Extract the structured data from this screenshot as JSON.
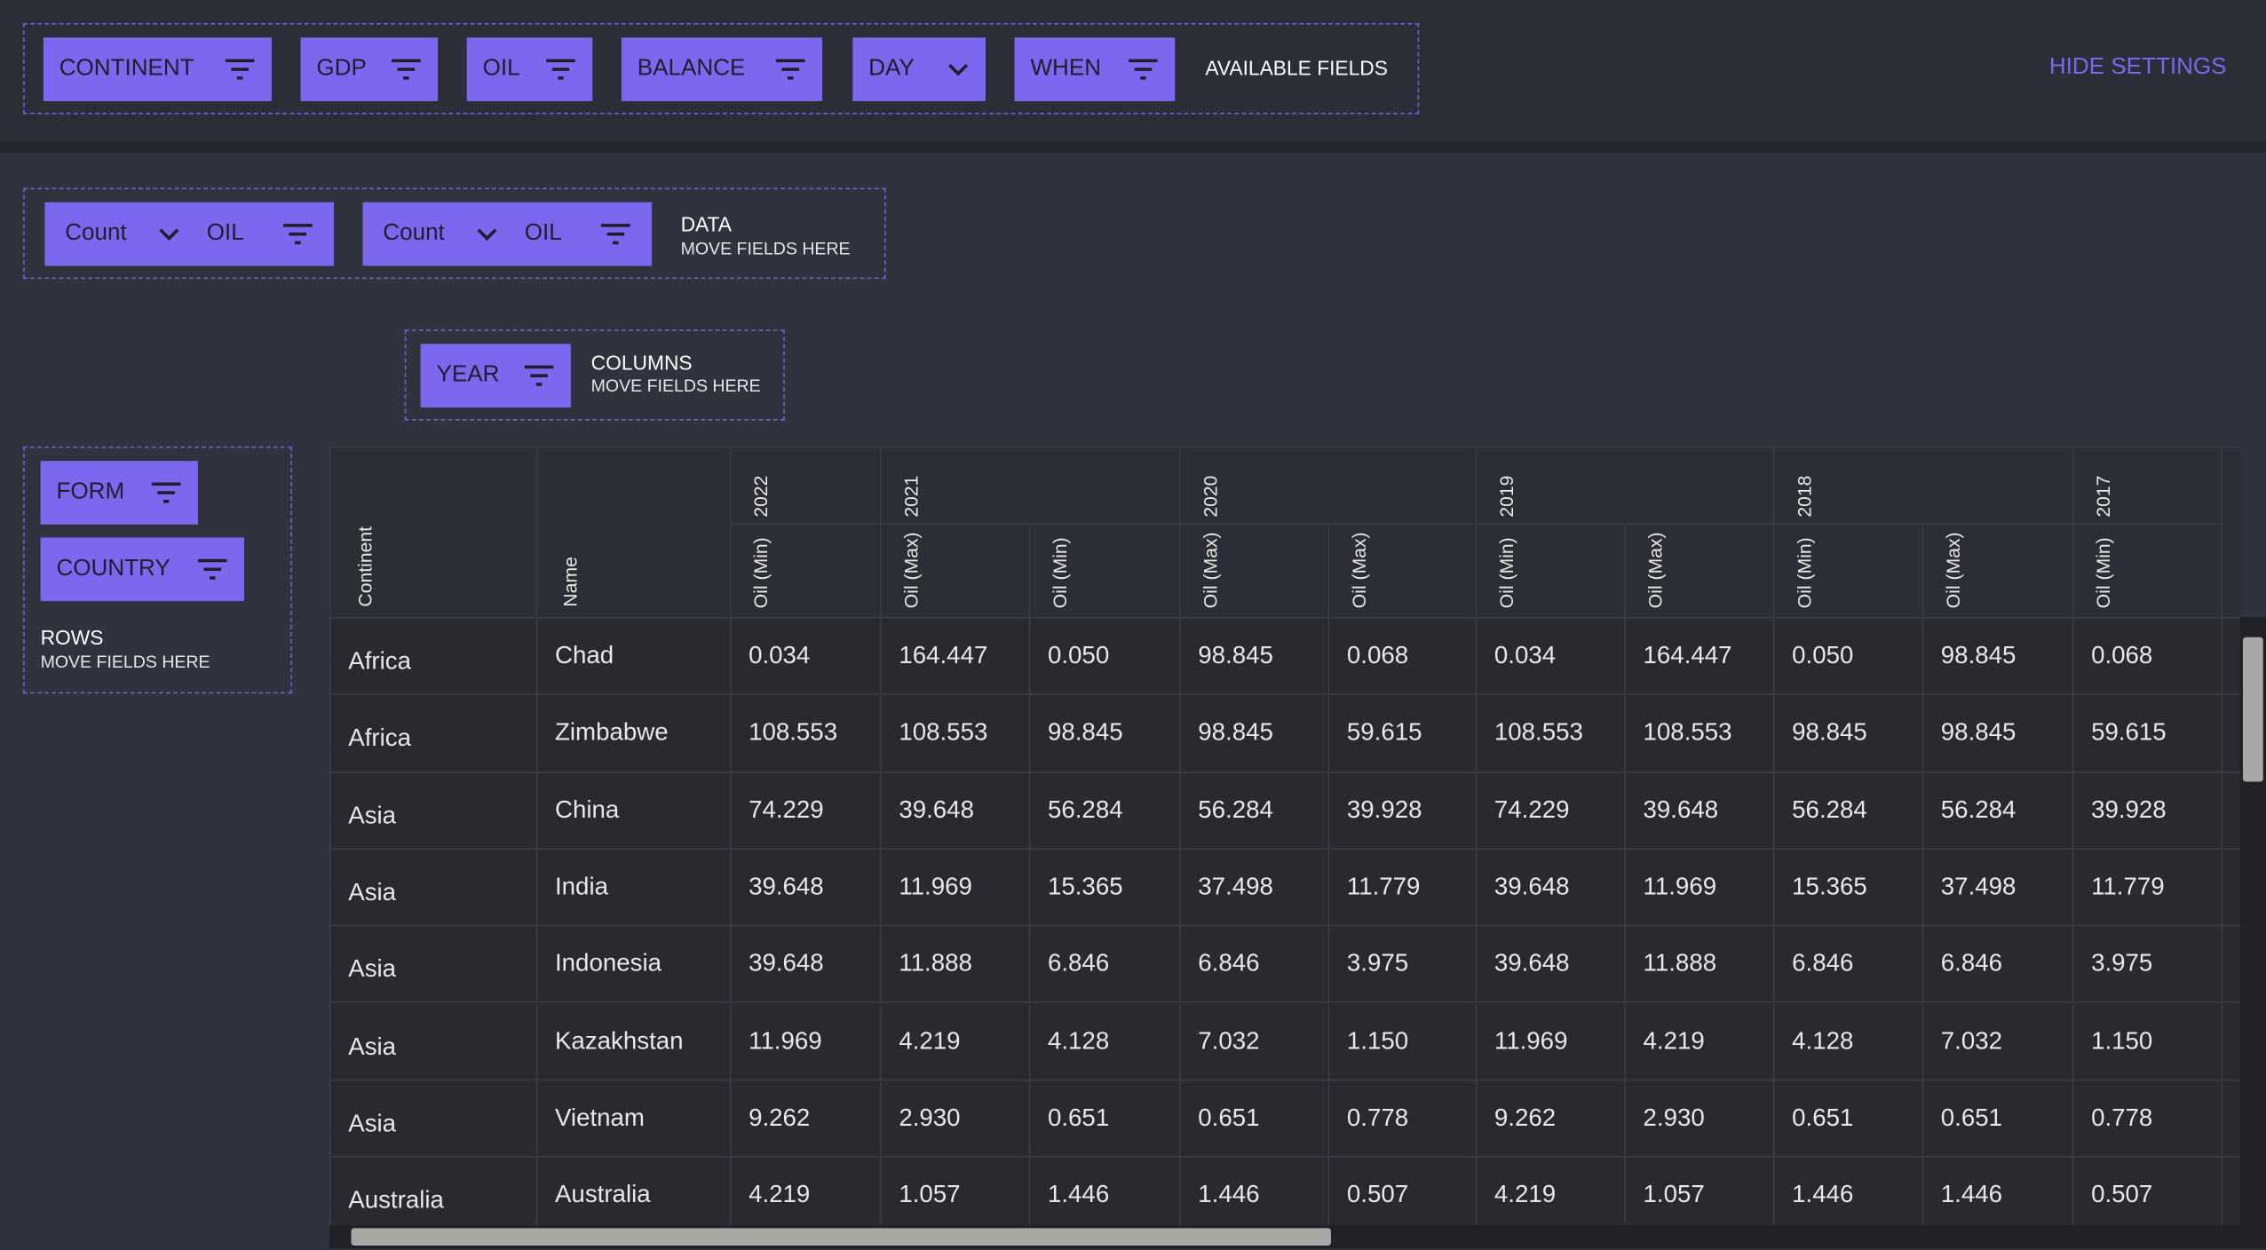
{
  "available": {
    "fields": [
      "CONTINENT",
      "GDP",
      "OIL",
      "BALANCE",
      "DAY",
      "WHEN"
    ],
    "label": "AVAILABLE FIELDS",
    "hide": "HIDE SETTINGS"
  },
  "data_zone": {
    "items": [
      {
        "agg": "Count",
        "field": "OIL"
      },
      {
        "agg": "Count",
        "field": "OIL"
      }
    ],
    "label": "DATA",
    "hint": "MOVE FIELDS HERE"
  },
  "columns_zone": {
    "items": [
      "YEAR"
    ],
    "label": "COLUMNS",
    "hint": "MOVE FIELDS HERE"
  },
  "rows_zone": {
    "items": [
      "FORM",
      "COUNTRY"
    ],
    "label": "ROWS",
    "hint": "MOVE FIELDS HERE"
  },
  "table": {
    "row_headers": [
      "Continent",
      "Name"
    ],
    "year_headers": [
      "2022",
      "2021",
      null,
      "2020",
      null,
      "2019",
      null,
      "2018",
      null,
      "2017"
    ],
    "measure_headers": [
      "Oil (Min)",
      "Oil (Max)",
      "Oil (Min)",
      "Oil (Max)",
      "Oil (Max)",
      "Oil (Min)",
      "Oil (Max)",
      "Oil (Min)",
      "Oil (Max)",
      "Oil (Min)"
    ],
    "rows": [
      [
        "Africa",
        "Chad",
        "0.034",
        "164.447",
        "0.050",
        "98.845",
        "0.068",
        "0.034",
        "164.447",
        "0.050",
        "98.845",
        "0.068"
      ],
      [
        "Africa",
        "Zimbabwe",
        "108.553",
        "108.553",
        "98.845",
        "98.845",
        "59.615",
        "108.553",
        "108.553",
        "98.845",
        "98.845",
        "59.615"
      ],
      [
        "Asia",
        "China",
        "74.229",
        "39.648",
        "56.284",
        "56.284",
        "39.928",
        "74.229",
        "39.648",
        "56.284",
        "56.284",
        "39.928"
      ],
      [
        "Asia",
        "India",
        "39.648",
        "11.969",
        "15.365",
        "37.498",
        "11.779",
        "39.648",
        "11.969",
        "15.365",
        "37.498",
        "11.779"
      ],
      [
        "Asia",
        "Indonesia",
        "39.648",
        "11.888",
        "6.846",
        "6.846",
        "3.975",
        "39.648",
        "11.888",
        "6.846",
        "6.846",
        "3.975"
      ],
      [
        "Asia",
        "Kazakhstan",
        "11.969",
        "4.219",
        "4.128",
        "7.032",
        "1.150",
        "11.969",
        "4.219",
        "4.128",
        "7.032",
        "1.150"
      ],
      [
        "Asia",
        "Vietnam",
        "9.262",
        "2.930",
        "0.651",
        "0.651",
        "0.778",
        "9.262",
        "2.930",
        "0.651",
        "0.651",
        "0.778"
      ],
      [
        "Australia",
        "Australia",
        "4.219",
        "1.057",
        "1.446",
        "1.446",
        "0.507",
        "4.219",
        "1.057",
        "1.446",
        "1.446",
        "0.507"
      ]
    ]
  }
}
